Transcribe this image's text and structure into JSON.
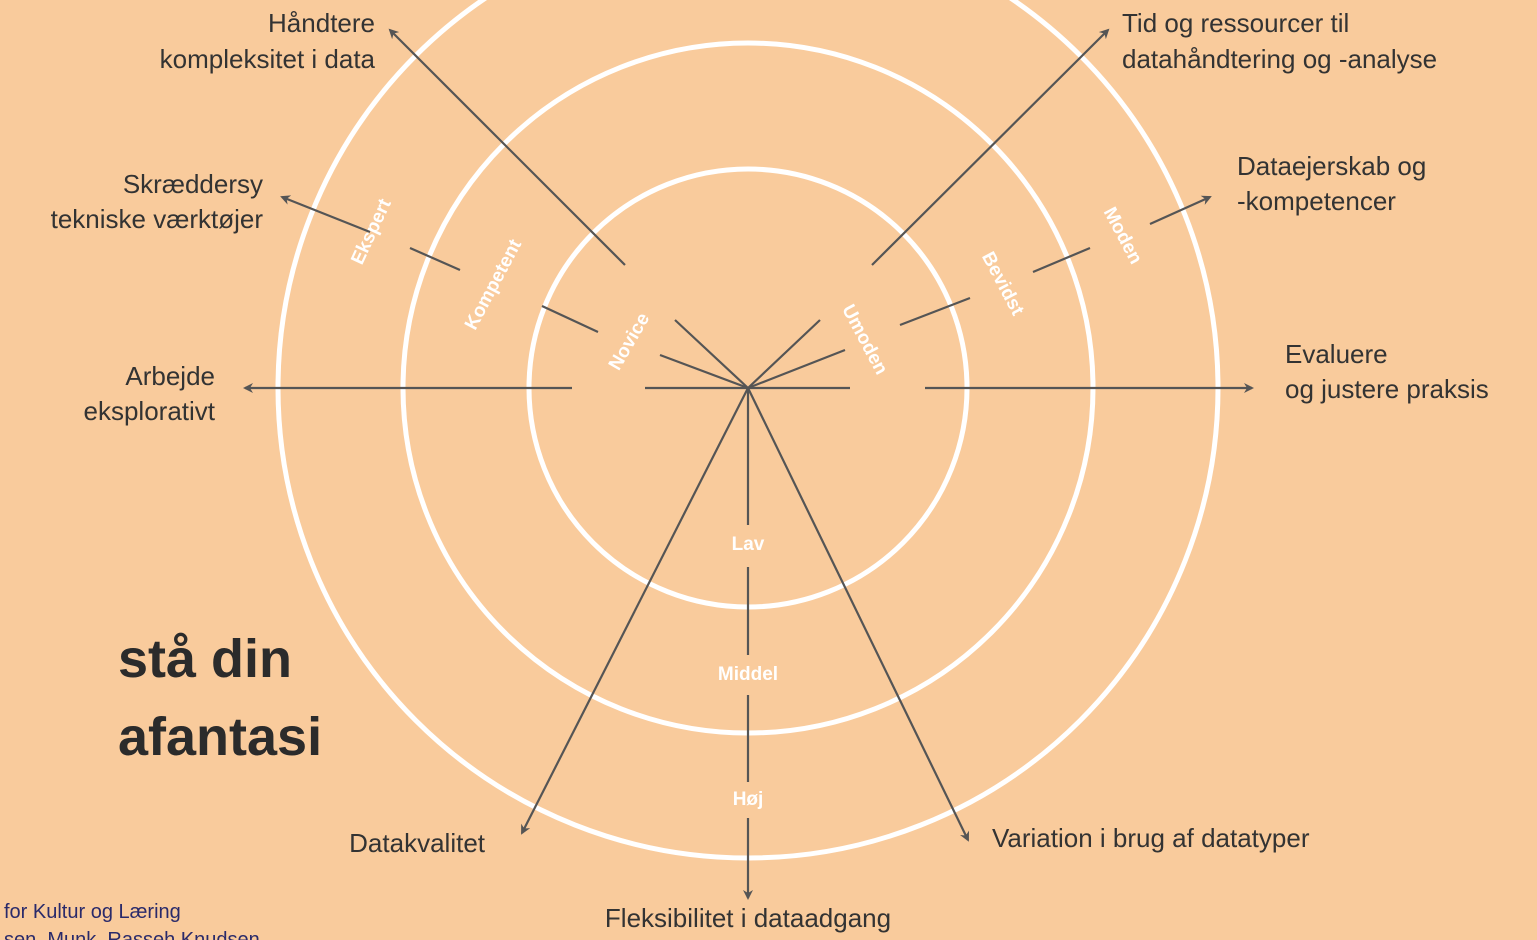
{
  "title": [
    "stå din",
    "afantasi"
  ],
  "footer": [
    "for Kultur og Læring",
    "sen, Munk, Rasseh Knudsen"
  ],
  "axes": [
    {
      "label": [
        "Håndtere",
        "kompleksitet i data"
      ]
    },
    {
      "label": [
        "Tid og ressourcer til",
        "datahåndtering og -analyse"
      ]
    },
    {
      "label": [
        "Skræddersy",
        "tekniske værktøjer"
      ]
    },
    {
      "label": [
        "Dataejerskab og",
        "-kompetencer"
      ]
    },
    {
      "label": [
        "Arbejde",
        "eksplorativt"
      ]
    },
    {
      "label": [
        "Evaluere",
        "og justere praksis"
      ]
    },
    {
      "label": [
        "Datakvalitet"
      ]
    },
    {
      "label": [
        "Variation i brug af datatyper"
      ]
    },
    {
      "label": [
        "Fleksibilitet i dataadgang"
      ]
    }
  ],
  "ring_labels": [
    "Novice",
    "Kompetent",
    "Ekspert",
    "Umoden",
    "Bevidst",
    "Moden",
    "Lav",
    "Middel",
    "Høj"
  ]
}
